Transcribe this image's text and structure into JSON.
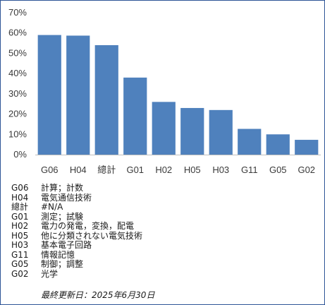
{
  "chart_data": {
    "type": "bar",
    "title": "",
    "xlabel": "",
    "ylabel": "",
    "categories": [
      "G06",
      "H04",
      "總計",
      "G01",
      "H02",
      "H05",
      "H03",
      "G11",
      "G05",
      "G02"
    ],
    "values": [
      59,
      58.7,
      54,
      38,
      26,
      23,
      22,
      12.7,
      10,
      7.3
    ],
    "ylim": [
      0,
      70
    ],
    "yticks": [
      "0%",
      "10%",
      "20%",
      "30%",
      "40%",
      "50%",
      "60%",
      "70%"
    ],
    "grid": false,
    "legend": "none",
    "bar_color": "#4f81bd"
  },
  "legend_table": [
    {
      "code": "G06",
      "desc": "計算；計数"
    },
    {
      "code": "H04",
      "desc": "電気通信技術"
    },
    {
      "code": "總計",
      "desc": "#N/A"
    },
    {
      "code": "G01",
      "desc": "測定；試験"
    },
    {
      "code": "H02",
      "desc": "電力の発電，変換，配電"
    },
    {
      "code": "H05",
      "desc": "他に分類されない電気技術"
    },
    {
      "code": "H03",
      "desc": "基本電子回路"
    },
    {
      "code": "G11",
      "desc": "情報記憶"
    },
    {
      "code": "G05",
      "desc": "制御；調整"
    },
    {
      "code": "G02",
      "desc": "光学"
    }
  ],
  "footnote": "最終更新日：2025年6月30日",
  "colors": {
    "frame_border": "#2e5597",
    "axis": "#bfbfbf"
  }
}
